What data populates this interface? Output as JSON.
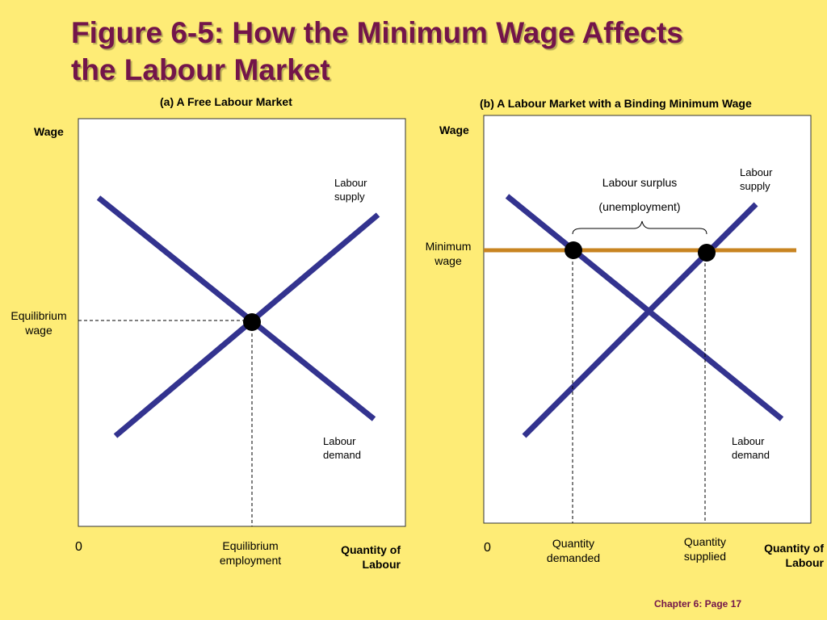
{
  "title": {
    "line1": "Figure 6-5: How the Minimum Wage Affects",
    "line2": "the Labour Market"
  },
  "panel_a": {
    "heading": "(a) A Free Labour Market",
    "y_axis": "Wage",
    "origin": "0",
    "x_axis_line1": "Quantity of",
    "x_axis_line2": "Labour",
    "supply_line1": "Labour",
    "supply_line2": "supply",
    "demand_line1": "Labour",
    "demand_line2": "demand",
    "eq_wage_line1": "Equilibrium",
    "eq_wage_line2": "wage",
    "eq_emp_line1": "Equilibrium",
    "eq_emp_line2": "employment"
  },
  "panel_b": {
    "heading": "(b) A Labour Market with a Binding Minimum Wage",
    "y_axis": "Wage",
    "origin": "0",
    "x_axis_line1": "Quantity of",
    "x_axis_line2": "Labour",
    "supply_line1": "Labour",
    "supply_line2": "supply",
    "demand_line1": "Labour",
    "demand_line2": "demand",
    "min_wage_line1": "Minimum",
    "min_wage_line2": "wage",
    "surplus_line1": "Labour surplus",
    "surplus_line2": "(unemployment)",
    "qd_line1": "Quantity",
    "qd_line2": "demanded",
    "qs_line1": "Quantity",
    "qs_line2": "supplied"
  },
  "footer": "Chapter 6: Page 17",
  "colors": {
    "background": "#FEEC76",
    "title": "#73154A",
    "curve": "#33338F",
    "minimum_wage_line": "#C88421",
    "point": "#000000"
  }
}
